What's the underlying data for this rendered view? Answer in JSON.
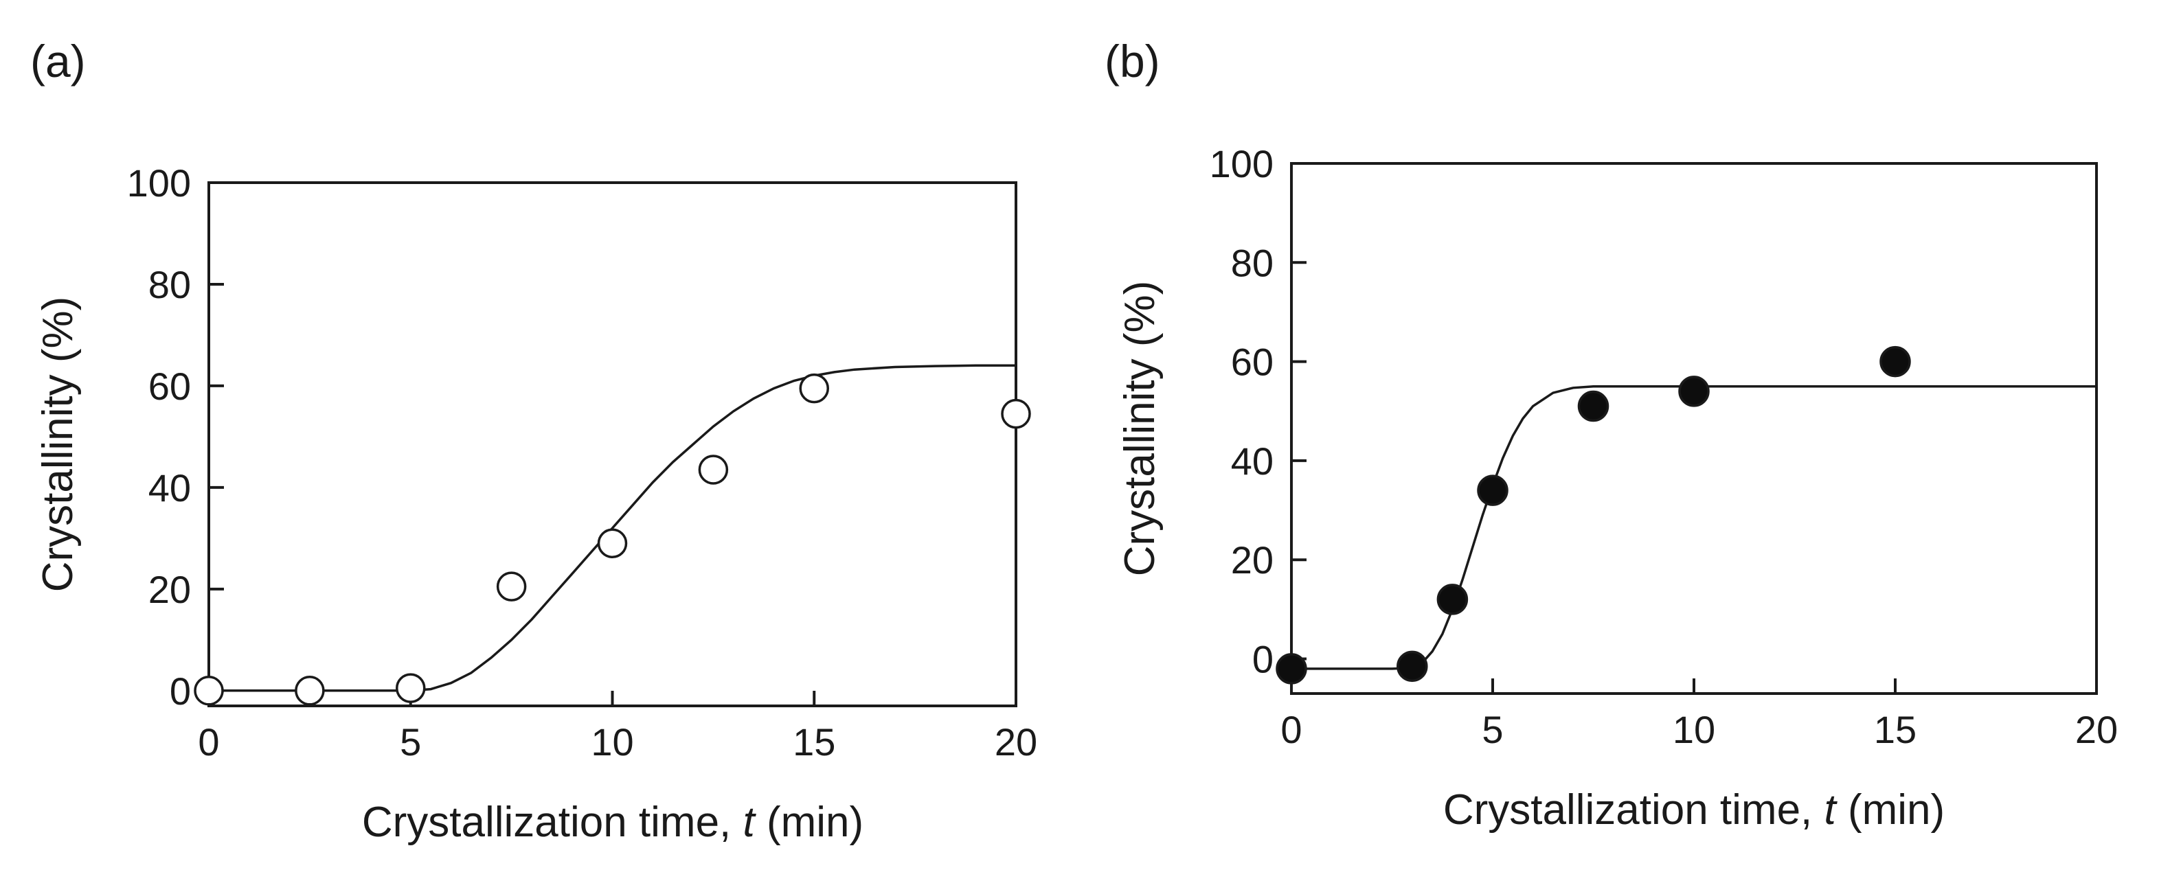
{
  "figure": {
    "panels": [
      {
        "label": "(a)"
      },
      {
        "label": "(b)"
      }
    ]
  },
  "chart_data": [
    {
      "type": "scatter",
      "panel": "(a)",
      "title": "",
      "xlabel_main": "Crystallization time, ",
      "xlabel_italic": "t",
      "xlabel_unit": " (min)",
      "ylabel": "Crystallinity (%)",
      "xlim": [
        0,
        20
      ],
      "ylim": [
        -3,
        100
      ],
      "xticks": [
        "0",
        "5",
        "10",
        "15",
        "20"
      ],
      "yticks": [
        "0",
        "20",
        "40",
        "60",
        "80",
        "100"
      ],
      "grid": false,
      "marker": "open-circle",
      "series": [
        {
          "points": [
            {
              "x": 0,
              "y": 0
            },
            {
              "x": 2.5,
              "y": 0
            },
            {
              "x": 5,
              "y": 0.5
            },
            {
              "x": 7.5,
              "y": 20.5
            },
            {
              "x": 10,
              "y": 29
            },
            {
              "x": 12.5,
              "y": 43.5
            },
            {
              "x": 15,
              "y": 59.5
            },
            {
              "x": 20,
              "y": 54.5
            }
          ]
        }
      ],
      "fit_curve": {
        "points": [
          {
            "x": 0,
            "y": 0
          },
          {
            "x": 5,
            "y": 0
          },
          {
            "x": 5.5,
            "y": 0.3
          },
          {
            "x": 6,
            "y": 1.5
          },
          {
            "x": 6.5,
            "y": 3.5
          },
          {
            "x": 7,
            "y": 6.5
          },
          {
            "x": 7.5,
            "y": 10
          },
          {
            "x": 8,
            "y": 14
          },
          {
            "x": 8.5,
            "y": 18.5
          },
          {
            "x": 9,
            "y": 23
          },
          {
            "x": 9.5,
            "y": 27.5
          },
          {
            "x": 10,
            "y": 32
          },
          {
            "x": 10.5,
            "y": 36.5
          },
          {
            "x": 11,
            "y": 41
          },
          {
            "x": 11.5,
            "y": 45
          },
          {
            "x": 12,
            "y": 48.5
          },
          {
            "x": 12.5,
            "y": 52
          },
          {
            "x": 13,
            "y": 55
          },
          {
            "x": 13.5,
            "y": 57.5
          },
          {
            "x": 14,
            "y": 59.5
          },
          {
            "x": 14.5,
            "y": 61
          },
          {
            "x": 15,
            "y": 62
          },
          {
            "x": 15.5,
            "y": 62.7
          },
          {
            "x": 16,
            "y": 63.2
          },
          {
            "x": 17,
            "y": 63.7
          },
          {
            "x": 18,
            "y": 63.9
          },
          {
            "x": 19,
            "y": 64
          },
          {
            "x": 20,
            "y": 64
          }
        ]
      }
    },
    {
      "type": "scatter",
      "panel": "(b)",
      "title": "",
      "xlabel_main": "Crystallization time, ",
      "xlabel_italic": "t",
      "xlabel_unit": " (min)",
      "ylabel": "Crystallinity (%)",
      "xlim": [
        0,
        20
      ],
      "ylim": [
        -7,
        100
      ],
      "xticks": [
        "0",
        "5",
        "10",
        "15",
        "20"
      ],
      "yticks": [
        "0",
        "20",
        "40",
        "60",
        "80",
        "100"
      ],
      "grid": false,
      "marker": "filled-circle",
      "series": [
        {
          "points": [
            {
              "x": 0,
              "y": -2
            },
            {
              "x": 3,
              "y": -1.5
            },
            {
              "x": 4,
              "y": 12
            },
            {
              "x": 5,
              "y": 34
            },
            {
              "x": 7.5,
              "y": 51
            },
            {
              "x": 10,
              "y": 54
            },
            {
              "x": 15,
              "y": 60
            }
          ]
        }
      ],
      "fit_curve": {
        "points": [
          {
            "x": 0,
            "y": -2
          },
          {
            "x": 2.5,
            "y": -2
          },
          {
            "x": 3,
            "y": -1.8
          },
          {
            "x": 3.25,
            "y": -0.8
          },
          {
            "x": 3.5,
            "y": 1.5
          },
          {
            "x": 3.75,
            "y": 5
          },
          {
            "x": 4,
            "y": 10
          },
          {
            "x": 4.25,
            "y": 16
          },
          {
            "x": 4.5,
            "y": 22.5
          },
          {
            "x": 4.75,
            "y": 29
          },
          {
            "x": 5,
            "y": 35
          },
          {
            "x": 5.25,
            "y": 40.5
          },
          {
            "x": 5.5,
            "y": 45
          },
          {
            "x": 5.75,
            "y": 48.5
          },
          {
            "x": 6,
            "y": 51
          },
          {
            "x": 6.5,
            "y": 53.7
          },
          {
            "x": 7,
            "y": 54.7
          },
          {
            "x": 7.5,
            "y": 55
          },
          {
            "x": 20,
            "y": 55
          }
        ]
      }
    }
  ]
}
